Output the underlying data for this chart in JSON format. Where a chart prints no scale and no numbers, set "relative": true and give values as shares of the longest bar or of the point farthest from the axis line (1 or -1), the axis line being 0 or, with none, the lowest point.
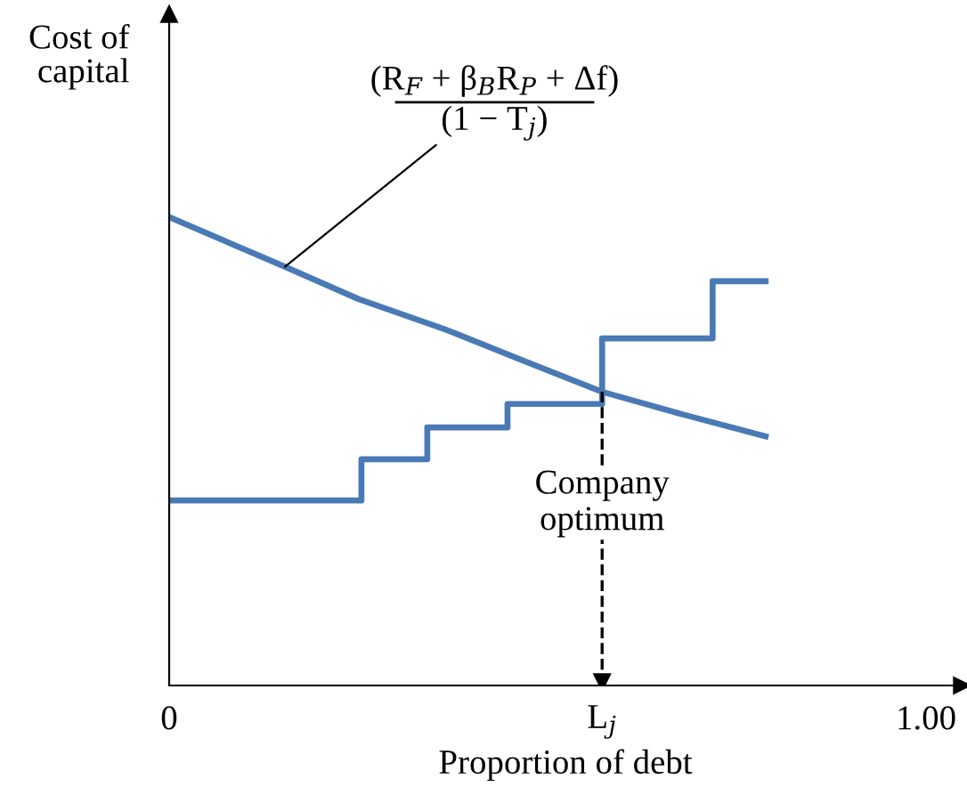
{
  "chart_data": {
    "type": "line",
    "relative": true,
    "xlabel": "Proportion of debt",
    "ylabel": "Cost of\ncapital",
    "xlim": [
      0,
      1.047
    ],
    "xticks": [
      {
        "value": 0,
        "label": "0"
      },
      {
        "value": 0.572,
        "label": "L$_{j}$"
      },
      {
        "value": 1.0,
        "label": "1.00"
      }
    ],
    "series": [
      {
        "color": "#4a7ab5",
        "x": [
          0,
          0.153,
          0.25,
          0.365,
          0.47,
          0.572,
          0.68,
          0.788
        ],
        "values": [
          1.0,
          0.894,
          0.825,
          0.76,
          0.692,
          0.627,
          0.578,
          0.532
        ]
      },
      {
        "type": "step",
        "color": "#4a7ab5",
        "x": [
          0,
          0.254,
          0.341,
          0.447,
          0.572,
          0.718,
          0.788
        ],
        "values": [
          0.395,
          0.483,
          0.551,
          0.601,
          0.741,
          0.863,
          0.863
        ]
      }
    ],
    "ref_lines": [
      {
        "axis": "x",
        "value": 0.572,
        "label": "Company\noptimum",
        "line_style": "dashed",
        "color": "#000000"
      }
    ],
    "annotations": [
      "(R$_{F}$ + β$_{B}$R$_{P}$ + Δf)",
      {
        "text": "(1 − T$_{j}$)",
        "x": 0.153,
        "y": 0.894
      }
    ],
    "grid": false,
    "legend": false
  }
}
